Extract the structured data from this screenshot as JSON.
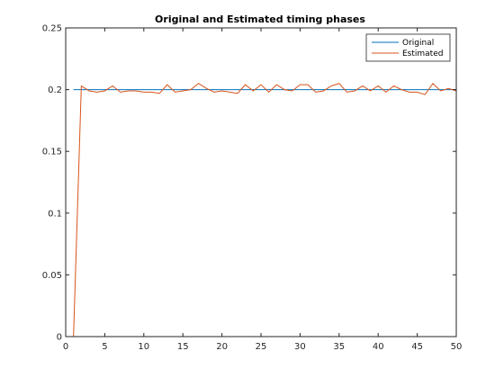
{
  "chart_data": {
    "type": "line",
    "title": "Original and Estimated timing phases",
    "xlabel": "",
    "ylabel": "",
    "xlim": [
      0,
      50
    ],
    "ylim": [
      0,
      0.25
    ],
    "xticks": [
      0,
      5,
      10,
      15,
      20,
      25,
      30,
      35,
      40,
      45,
      50
    ],
    "yticks": [
      0,
      0.05,
      0.1,
      0.15,
      0.2,
      0.25
    ],
    "xtick_labels": [
      "0",
      "5",
      "10",
      "15",
      "20",
      "25",
      "30",
      "35",
      "40",
      "45",
      "50"
    ],
    "ytick_labels": [
      "0",
      "0.05",
      "0.1",
      "0.15",
      "0.2",
      "0.25"
    ],
    "grid": false,
    "legend_position": "top-right",
    "series": [
      {
        "name": "Original",
        "color": "#0072BD",
        "x": [
          1,
          2,
          3,
          4,
          5,
          6,
          7,
          8,
          9,
          10,
          11,
          12,
          13,
          14,
          15,
          16,
          17,
          18,
          19,
          20,
          21,
          22,
          23,
          24,
          25,
          26,
          27,
          28,
          29,
          30,
          31,
          32,
          33,
          34,
          35,
          36,
          37,
          38,
          39,
          40,
          41,
          42,
          43,
          44,
          45,
          46,
          47,
          48,
          49,
          50
        ],
        "values": [
          0.2,
          0.2,
          0.2,
          0.2,
          0.2,
          0.2,
          0.2,
          0.2,
          0.2,
          0.2,
          0.2,
          0.2,
          0.2,
          0.2,
          0.2,
          0.2,
          0.2,
          0.2,
          0.2,
          0.2,
          0.2,
          0.2,
          0.2,
          0.2,
          0.2,
          0.2,
          0.2,
          0.2,
          0.2,
          0.2,
          0.2,
          0.2,
          0.2,
          0.2,
          0.2,
          0.2,
          0.2,
          0.2,
          0.2,
          0.2,
          0.2,
          0.2,
          0.2,
          0.2,
          0.2,
          0.2,
          0.2,
          0.2,
          0.2,
          0.2
        ]
      },
      {
        "name": "Estimated",
        "color": "#D95319",
        "x": [
          1,
          2,
          3,
          4,
          5,
          6,
          7,
          8,
          9,
          10,
          11,
          12,
          13,
          14,
          15,
          16,
          17,
          18,
          19,
          20,
          21,
          22,
          23,
          24,
          25,
          26,
          27,
          28,
          29,
          30,
          31,
          32,
          33,
          34,
          35,
          36,
          37,
          38,
          39,
          40,
          41,
          42,
          43,
          44,
          45,
          46,
          47,
          48,
          49,
          50
        ],
        "values": [
          0,
          0.203,
          0.199,
          0.198,
          0.199,
          0.203,
          0.198,
          0.199,
          0.199,
          0.198,
          0.198,
          0.197,
          0.204,
          0.198,
          0.199,
          0.2,
          0.205,
          0.201,
          0.198,
          0.199,
          0.198,
          0.197,
          0.204,
          0.199,
          0.204,
          0.198,
          0.204,
          0.2,
          0.199,
          0.204,
          0.204,
          0.198,
          0.199,
          0.203,
          0.205,
          0.198,
          0.199,
          0.203,
          0.199,
          0.203,
          0.198,
          0.203,
          0.2,
          0.198,
          0.198,
          0.196,
          0.205,
          0.199,
          0.201,
          0.199
        ]
      }
    ]
  }
}
